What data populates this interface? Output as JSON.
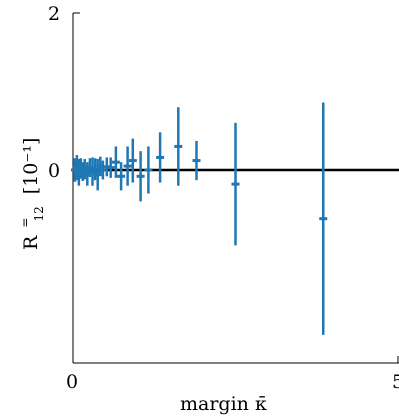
{
  "chart_data": {
    "type": "scatter",
    "title": "",
    "xlabel": "margin κ̄",
    "ylabel_main": "R",
    "ylabel_sup": "=",
    "ylabel_sub": "12",
    "ylabel_unit": "[10⁻¹]",
    "xlim": [
      0,
      5
    ],
    "ylim": [
      -2,
      2
    ],
    "x_ticks": [
      0,
      5
    ],
    "x_tick_labels": [
      "0",
      "5"
    ],
    "y_ticks": [
      0,
      2
    ],
    "y_tick_labels": [
      "0",
      "2"
    ],
    "reference_line": {
      "y": 0,
      "color": "#000000"
    },
    "grid": false,
    "legend": "none",
    "series": [
      {
        "color": "#1f77b4",
        "points": [
          {
            "x": 0.03,
            "y": 0.0,
            "err": 0.15
          },
          {
            "x": 0.06,
            "y": 0.03,
            "err": 0.16
          },
          {
            "x": 0.09,
            "y": -0.03,
            "err": 0.17
          },
          {
            "x": 0.12,
            "y": 0.02,
            "err": 0.13
          },
          {
            "x": 0.15,
            "y": -0.02,
            "err": 0.12
          },
          {
            "x": 0.18,
            "y": 0.01,
            "err": 0.13
          },
          {
            "x": 0.22,
            "y": -0.05,
            "err": 0.15
          },
          {
            "x": 0.26,
            "y": 0.03,
            "err": 0.12
          },
          {
            "x": 0.3,
            "y": -0.02,
            "err": 0.18
          },
          {
            "x": 0.34,
            "y": 0.01,
            "err": 0.14
          },
          {
            "x": 0.38,
            "y": -0.06,
            "err": 0.2
          },
          {
            "x": 0.42,
            "y": 0.05,
            "err": 0.12
          },
          {
            "x": 0.46,
            "y": 0.0,
            "err": 0.12
          },
          {
            "x": 0.52,
            "y": 0.04,
            "err": 0.12
          },
          {
            "x": 0.58,
            "y": 0.03,
            "err": 0.13
          },
          {
            "x": 0.66,
            "y": 0.1,
            "err": 0.2
          },
          {
            "x": 0.74,
            "y": -0.08,
            "err": 0.18
          },
          {
            "x": 0.84,
            "y": 0.05,
            "err": 0.25
          },
          {
            "x": 0.92,
            "y": 0.12,
            "err": 0.28
          },
          {
            "x": 1.04,
            "y": -0.08,
            "err": 0.32
          },
          {
            "x": 1.16,
            "y": 0.0,
            "err": 0.3
          },
          {
            "x": 1.34,
            "y": 0.16,
            "err": 0.32
          },
          {
            "x": 1.62,
            "y": 0.3,
            "err": 0.5
          },
          {
            "x": 1.9,
            "y": 0.12,
            "err": 0.25
          },
          {
            "x": 2.5,
            "y": -0.18,
            "err": 0.78
          },
          {
            "x": 3.85,
            "y": -0.62,
            "err": 1.48
          }
        ]
      }
    ]
  }
}
